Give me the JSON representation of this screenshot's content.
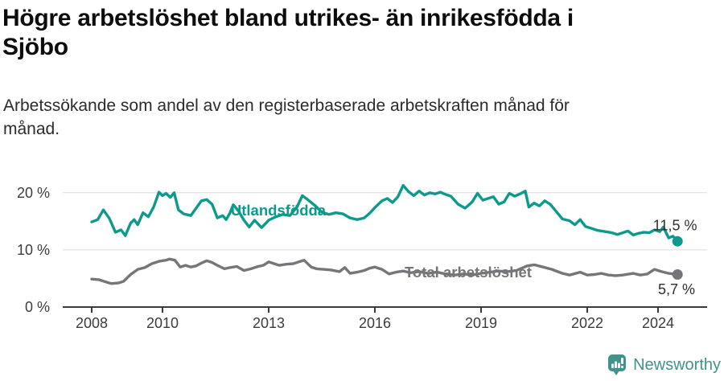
{
  "header": {
    "title": "Högre arbetslöshet bland utrikes- än inrikesfödda i Sjöbo",
    "subtitle": "Arbetssökande som andel av den registerbaserade arbetskraften månad för månad."
  },
  "footer": {
    "brand": "Newsworthy"
  },
  "colors": {
    "foreign_series": "#0d9a8d",
    "total_series": "#76767a",
    "grid": "#dcdcdc",
    "axis": "#3a3a3a",
    "tick_text": "#3c3c3c",
    "value_label": "#2e2e2e",
    "brand": "#3e938b",
    "title_text": "#0d0d0d"
  },
  "chart_data": {
    "type": "line",
    "title": "Högre arbetslöshet bland utrikes- än inrikesfödda i Sjöbo",
    "subtitle": "Arbetssökande som andel av den registerbaserade arbetskraften månad för månad.",
    "grid": true,
    "legend_position": "inline-labels",
    "x_axis": {
      "range": [
        2007.2,
        2025.4
      ],
      "ticks": [
        {
          "year": 2008,
          "label": "2008"
        },
        {
          "year": 2010,
          "label": "2010"
        },
        {
          "year": 2013,
          "label": "2013"
        },
        {
          "year": 2016,
          "label": "2016"
        },
        {
          "year": 2019,
          "label": "2019"
        },
        {
          "year": 2022,
          "label": "2022"
        },
        {
          "year": 2024,
          "label": "2024"
        }
      ]
    },
    "y_axis": {
      "range": [
        0,
        21.5
      ],
      "unit": "%",
      "ticks": [
        {
          "value": 0,
          "label": "0 %"
        },
        {
          "value": 10,
          "label": "10 %"
        },
        {
          "value": 20,
          "label": "20 %"
        }
      ]
    },
    "series": [
      {
        "id": "utlandsfodda",
        "name": "Utlandsfödda",
        "color": "#0d9a8d",
        "end_value": 11.5,
        "label": {
          "text": "Utlandsfödda",
          "x": 2011.93,
          "y": 16.0
        },
        "end_label": {
          "text": "11,5 %",
          "x": 2023.86,
          "y": 13.4
        },
        "points": [
          [
            2008.0,
            14.9
          ],
          [
            2008.17,
            15.3
          ],
          [
            2008.33,
            17.0
          ],
          [
            2008.5,
            15.5
          ],
          [
            2008.67,
            13.1
          ],
          [
            2008.83,
            13.5
          ],
          [
            2008.95,
            12.5
          ],
          [
            2009.1,
            14.7
          ],
          [
            2009.2,
            15.3
          ],
          [
            2009.3,
            14.4
          ],
          [
            2009.45,
            16.5
          ],
          [
            2009.6,
            15.8
          ],
          [
            2009.75,
            17.5
          ],
          [
            2009.9,
            20.1
          ],
          [
            2010.0,
            19.5
          ],
          [
            2010.1,
            19.9
          ],
          [
            2010.22,
            19.2
          ],
          [
            2010.33,
            20.0
          ],
          [
            2010.45,
            17.0
          ],
          [
            2010.6,
            16.3
          ],
          [
            2010.8,
            16.0
          ],
          [
            2010.95,
            17.3
          ],
          [
            2011.1,
            18.6
          ],
          [
            2011.25,
            18.8
          ],
          [
            2011.4,
            18.0
          ],
          [
            2011.55,
            15.6
          ],
          [
            2011.7,
            16.0
          ],
          [
            2011.8,
            15.3
          ],
          [
            2011.9,
            16.4
          ],
          [
            2012.0,
            17.9
          ],
          [
            2012.15,
            16.8
          ],
          [
            2012.3,
            15.2
          ],
          [
            2012.45,
            14.0
          ],
          [
            2012.6,
            15.2
          ],
          [
            2012.8,
            13.9
          ],
          [
            2013.0,
            15.2
          ],
          [
            2013.2,
            15.8
          ],
          [
            2013.4,
            16.2
          ],
          [
            2013.6,
            16.0
          ],
          [
            2013.8,
            17.5
          ],
          [
            2013.95,
            19.5
          ],
          [
            2014.1,
            18.8
          ],
          [
            2014.3,
            17.8
          ],
          [
            2014.5,
            16.6
          ],
          [
            2014.7,
            16.2
          ],
          [
            2014.9,
            16.5
          ],
          [
            2015.1,
            16.3
          ],
          [
            2015.3,
            15.6
          ],
          [
            2015.5,
            15.3
          ],
          [
            2015.7,
            15.6
          ],
          [
            2015.85,
            16.4
          ],
          [
            2016.0,
            17.4
          ],
          [
            2016.2,
            18.6
          ],
          [
            2016.35,
            19.0
          ],
          [
            2016.5,
            18.3
          ],
          [
            2016.65,
            19.3
          ],
          [
            2016.8,
            21.3
          ],
          [
            2016.95,
            20.2
          ],
          [
            2017.1,
            19.5
          ],
          [
            2017.25,
            20.3
          ],
          [
            2017.4,
            19.6
          ],
          [
            2017.55,
            20.0
          ],
          [
            2017.7,
            19.8
          ],
          [
            2017.85,
            20.1
          ],
          [
            2018.0,
            19.7
          ],
          [
            2018.15,
            19.4
          ],
          [
            2018.35,
            18.0
          ],
          [
            2018.55,
            17.3
          ],
          [
            2018.75,
            18.4
          ],
          [
            2018.9,
            19.9
          ],
          [
            2019.05,
            18.7
          ],
          [
            2019.2,
            19.0
          ],
          [
            2019.35,
            19.3
          ],
          [
            2019.5,
            18.0
          ],
          [
            2019.65,
            18.4
          ],
          [
            2019.8,
            19.9
          ],
          [
            2019.95,
            19.4
          ],
          [
            2020.1,
            19.8
          ],
          [
            2020.25,
            20.3
          ],
          [
            2020.35,
            17.5
          ],
          [
            2020.5,
            18.2
          ],
          [
            2020.65,
            17.7
          ],
          [
            2020.8,
            18.6
          ],
          [
            2020.95,
            18.0
          ],
          [
            2021.1,
            16.9
          ],
          [
            2021.3,
            15.4
          ],
          [
            2021.5,
            15.1
          ],
          [
            2021.65,
            14.4
          ],
          [
            2021.8,
            15.3
          ],
          [
            2021.95,
            14.1
          ],
          [
            2022.1,
            13.8
          ],
          [
            2022.3,
            13.4
          ],
          [
            2022.5,
            13.2
          ],
          [
            2022.7,
            13.0
          ],
          [
            2022.85,
            12.7
          ],
          [
            2023.0,
            13.0
          ],
          [
            2023.15,
            13.3
          ],
          [
            2023.3,
            12.6
          ],
          [
            2023.45,
            12.9
          ],
          [
            2023.6,
            13.1
          ],
          [
            2023.75,
            13.0
          ],
          [
            2023.9,
            13.5
          ],
          [
            2024.05,
            13.2
          ],
          [
            2024.15,
            14.0
          ],
          [
            2024.3,
            12.1
          ],
          [
            2024.42,
            12.4
          ],
          [
            2024.55,
            11.5
          ]
        ]
      },
      {
        "id": "total",
        "name": "Total arbetslöshet",
        "color": "#76767a",
        "end_value": 5.7,
        "label": {
          "text": "Total arbetslöshet",
          "x": 2016.84,
          "y": 5.2
        },
        "end_label": {
          "text": "5,7 %",
          "x": 2024.0,
          "y": 2.25
        },
        "points": [
          [
            2008.0,
            4.9
          ],
          [
            2008.2,
            4.8
          ],
          [
            2008.4,
            4.4
          ],
          [
            2008.55,
            4.1
          ],
          [
            2008.75,
            4.2
          ],
          [
            2008.9,
            4.5
          ],
          [
            2009.1,
            5.7
          ],
          [
            2009.3,
            6.6
          ],
          [
            2009.5,
            6.9
          ],
          [
            2009.7,
            7.6
          ],
          [
            2009.9,
            8.0
          ],
          [
            2010.1,
            8.2
          ],
          [
            2010.2,
            8.4
          ],
          [
            2010.35,
            8.2
          ],
          [
            2010.5,
            7.0
          ],
          [
            2010.65,
            7.3
          ],
          [
            2010.8,
            7.0
          ],
          [
            2010.95,
            7.2
          ],
          [
            2011.1,
            7.7
          ],
          [
            2011.25,
            8.1
          ],
          [
            2011.4,
            7.8
          ],
          [
            2011.55,
            7.3
          ],
          [
            2011.75,
            6.7
          ],
          [
            2011.9,
            6.9
          ],
          [
            2012.1,
            7.1
          ],
          [
            2012.3,
            6.4
          ],
          [
            2012.5,
            6.7
          ],
          [
            2012.7,
            7.1
          ],
          [
            2012.85,
            7.3
          ],
          [
            2013.0,
            7.9
          ],
          [
            2013.15,
            7.6
          ],
          [
            2013.3,
            7.3
          ],
          [
            2013.5,
            7.5
          ],
          [
            2013.7,
            7.6
          ],
          [
            2013.85,
            7.9
          ],
          [
            2014.0,
            8.2
          ],
          [
            2014.2,
            7.0
          ],
          [
            2014.35,
            6.7
          ],
          [
            2014.55,
            6.6
          ],
          [
            2014.75,
            6.5
          ],
          [
            2015.0,
            6.2
          ],
          [
            2015.15,
            6.9
          ],
          [
            2015.3,
            5.9
          ],
          [
            2015.5,
            6.1
          ],
          [
            2015.7,
            6.4
          ],
          [
            2015.85,
            6.8
          ],
          [
            2016.0,
            7.0
          ],
          [
            2016.2,
            6.6
          ],
          [
            2016.4,
            5.8
          ],
          [
            2016.6,
            6.1
          ],
          [
            2016.8,
            6.3
          ],
          [
            2017.0,
            6.0
          ],
          [
            2017.25,
            6.2
          ],
          [
            2017.5,
            5.9
          ],
          [
            2017.75,
            6.1
          ],
          [
            2018.0,
            5.8
          ],
          [
            2018.25,
            5.6
          ],
          [
            2018.5,
            5.8
          ],
          [
            2018.75,
            5.6
          ],
          [
            2019.0,
            5.9
          ],
          [
            2019.25,
            6.1
          ],
          [
            2019.5,
            6.3
          ],
          [
            2019.75,
            6.2
          ],
          [
            2020.0,
            6.4
          ],
          [
            2020.3,
            7.2
          ],
          [
            2020.5,
            7.4
          ],
          [
            2020.75,
            7.0
          ],
          [
            2021.0,
            6.6
          ],
          [
            2021.3,
            5.9
          ],
          [
            2021.5,
            5.6
          ],
          [
            2021.8,
            6.1
          ],
          [
            2022.0,
            5.6
          ],
          [
            2022.2,
            5.7
          ],
          [
            2022.4,
            5.9
          ],
          [
            2022.6,
            5.6
          ],
          [
            2022.8,
            5.5
          ],
          [
            2023.0,
            5.6
          ],
          [
            2023.3,
            5.9
          ],
          [
            2023.5,
            5.6
          ],
          [
            2023.7,
            5.8
          ],
          [
            2023.9,
            6.6
          ],
          [
            2024.1,
            6.2
          ],
          [
            2024.3,
            5.9
          ],
          [
            2024.55,
            5.7
          ]
        ]
      }
    ]
  }
}
